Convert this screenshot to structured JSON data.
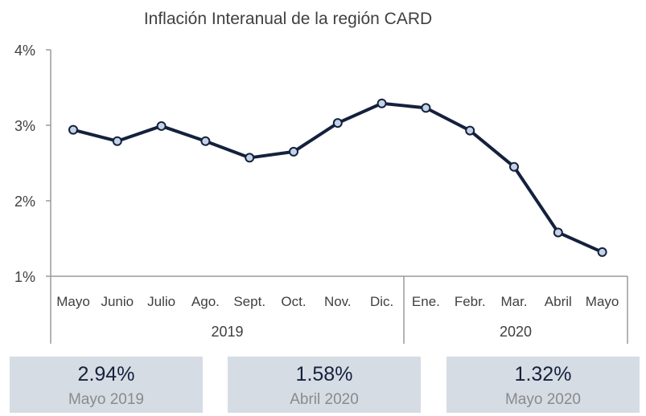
{
  "chart_data": {
    "type": "line",
    "title": "Inflación Interanual de la región CARD",
    "categories": [
      "Mayo",
      "Junio",
      "Julio",
      "Ago.",
      "Sept.",
      "Oct.",
      "Nov.",
      "Dic.",
      "Ene.",
      "Febr.",
      "Mar.",
      "Abril",
      "Mayo"
    ],
    "groups": [
      {
        "label": "2019",
        "start": 0,
        "end": 7
      },
      {
        "label": "2020",
        "start": 8,
        "end": 12
      }
    ],
    "series": [
      {
        "values": [
          2.94,
          2.79,
          2.99,
          2.79,
          2.57,
          2.65,
          3.03,
          3.29,
          3.23,
          2.93,
          2.45,
          1.58,
          1.32
        ]
      }
    ],
    "y_ticks": [
      "1%",
      "2%",
      "3%",
      "4%"
    ],
    "ylim": [
      1,
      4
    ],
    "grid": false,
    "line_color": "#14213d",
    "marker_fill": "#c5d3e6"
  },
  "cards": [
    {
      "value": "2.94%",
      "label": "Mayo 2019"
    },
    {
      "value": "1.58%",
      "label": "Abril 2020"
    },
    {
      "value": "1.32%",
      "label": "Mayo 2020"
    }
  ]
}
